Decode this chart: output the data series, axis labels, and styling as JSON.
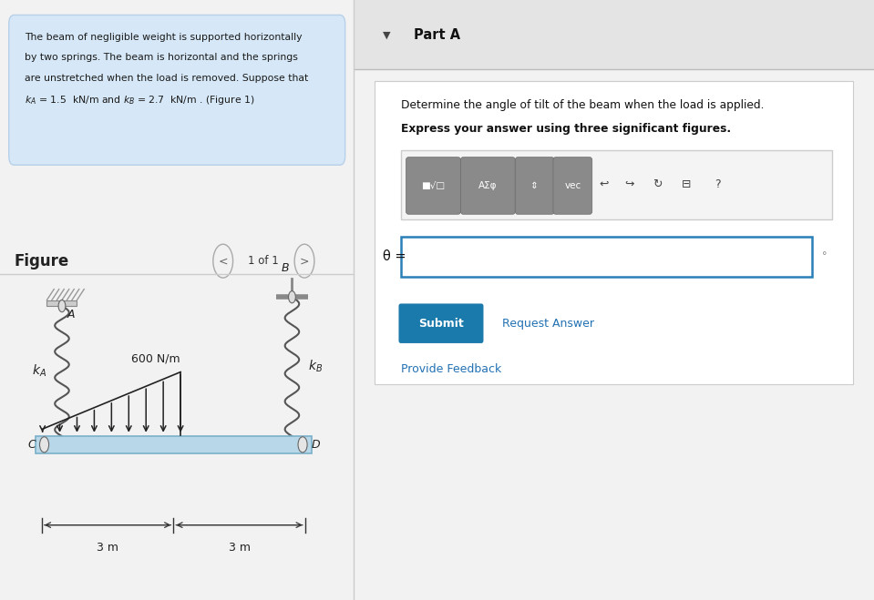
{
  "bg_color": "#f2f2f2",
  "left_panel_bg": "#ffffff",
  "right_panel_bg": "#f2f2f2",
  "problem_text_bg": "#d6e8f7",
  "problem_text_border": "#b8d0e8",
  "figure_label": "Figure",
  "nav_text": "1 of 1",
  "part_a_title": "Part A",
  "part_a_bg": "#e4e4e4",
  "question_line1": "Determine the angle of tilt of the beam when the load is applied.",
  "question_line2": "Express your answer using three significant figures.",
  "theta_label": "θ =",
  "degree_symbol": "°",
  "submit_text": "Submit",
  "request_text": "Request Answer",
  "feedback_text": "Provide Feedback",
  "load_label": "600 N/m",
  "dim1": "3 m",
  "dim2": "3 m",
  "beam_color": "#b8d8ea",
  "beam_outline": "#7ab0c8",
  "arrow_color": "#222222",
  "submit_btn_color": "#1a7aab",
  "submit_text_color": "#ffffff",
  "link_color": "#2271b3",
  "input_border_color": "#2980b9",
  "divider_color": "#cccccc",
  "spring_color": "#666666",
  "toolbar_bg": "#e0e0e0",
  "toolbar_btn_bg": "#888888",
  "white": "#ffffff"
}
